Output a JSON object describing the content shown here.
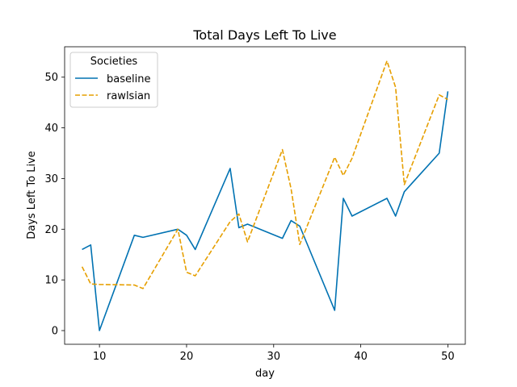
{
  "chart_data": {
    "type": "line",
    "title": "Total Days Left To Live",
    "xlabel": "day",
    "ylabel": "Days Left To Live",
    "xlim": [
      6,
      52
    ],
    "ylim": [
      -2.7,
      56
    ],
    "xticks": [
      10,
      20,
      30,
      40,
      50
    ],
    "yticks": [
      0,
      10,
      20,
      30,
      40,
      50
    ],
    "grid": false,
    "legend": {
      "title": "Societies",
      "placement": "top-left"
    },
    "series": [
      {
        "name": "baseline",
        "color": "#0072b2",
        "style": "solid",
        "x": [
          8,
          9,
          10,
          14,
          15,
          19,
          20,
          21,
          25,
          26,
          27,
          31,
          32,
          33,
          37,
          38,
          39,
          43,
          44,
          45,
          49,
          50
        ],
        "y": [
          16.0,
          16.9,
          0.0,
          18.8,
          18.4,
          20.0,
          18.8,
          16.0,
          32.0,
          20.3,
          21.0,
          18.2,
          21.7,
          20.6,
          4.0,
          26.1,
          22.6,
          26.1,
          22.6,
          27.4,
          35.0,
          47.2
        ]
      },
      {
        "name": "rawlsian",
        "color": "#e69f00",
        "style": "dashed",
        "x": [
          8,
          9,
          10,
          14,
          15,
          19,
          20,
          21,
          25,
          26,
          27,
          31,
          32,
          33,
          37,
          38,
          39,
          43,
          44,
          45,
          49,
          50
        ],
        "y": [
          12.6,
          9.2,
          9.1,
          9.0,
          8.3,
          20.0,
          11.5,
          10.8,
          21.5,
          23.0,
          17.5,
          35.7,
          28.0,
          17.0,
          34.2,
          30.6,
          34.0,
          53.2,
          48.0,
          28.8,
          46.5,
          45.6
        ]
      }
    ]
  }
}
